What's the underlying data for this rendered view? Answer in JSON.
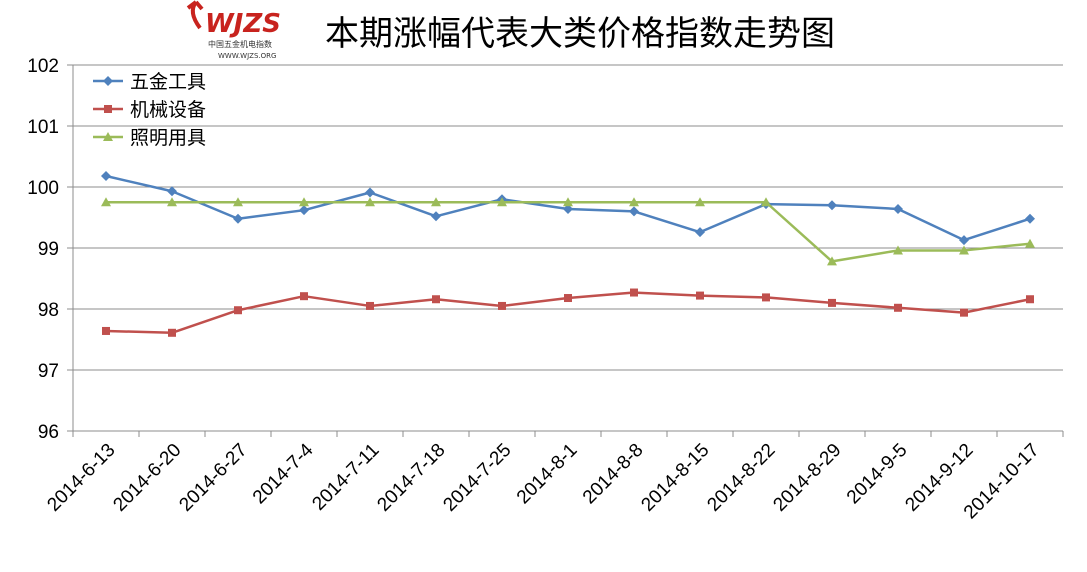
{
  "logo": {
    "brand": "WJZS",
    "subtitle": "中国五金机电指数",
    "url": "WWW.WJZS.ORG",
    "color": "#c8231e"
  },
  "chart_data": {
    "type": "line",
    "title": "本期涨幅代表大类价格指数走势图",
    "xlabel": "",
    "ylabel": "",
    "ylim": [
      96,
      102
    ],
    "yticks": [
      96,
      97,
      98,
      99,
      100,
      101,
      102
    ],
    "grid": true,
    "legend_position": "top-left",
    "categories": [
      "2014-6-13",
      "2014-6-20",
      "2014-6-27",
      "2014-7-4",
      "2014-7-11",
      "2014-7-18",
      "2014-7-25",
      "2014-8-1",
      "2014-8-8",
      "2014-8-15",
      "2014-8-22",
      "2014-8-29",
      "2014-9-5",
      "2014-9-12",
      "2014-10-17"
    ],
    "series": [
      {
        "name": "五金工具",
        "color": "#4f81bd",
        "marker": "diamond",
        "values": [
          100.18,
          99.93,
          99.48,
          99.62,
          99.91,
          99.52,
          99.8,
          99.64,
          99.6,
          99.26,
          99.72,
          99.7,
          99.64,
          99.13,
          99.48
        ]
      },
      {
        "name": "机械设备",
        "color": "#c0504d",
        "marker": "square",
        "values": [
          97.64,
          97.61,
          97.98,
          98.21,
          98.05,
          98.16,
          98.05,
          98.18,
          98.27,
          98.22,
          98.19,
          98.1,
          98.02,
          97.94,
          98.16
        ]
      },
      {
        "name": "照明用具",
        "color": "#9bbb59",
        "marker": "triangle",
        "values": [
          99.75,
          99.75,
          99.75,
          99.75,
          99.75,
          99.75,
          99.75,
          99.75,
          99.75,
          99.75,
          99.75,
          98.78,
          98.96,
          98.96,
          99.07
        ]
      }
    ]
  }
}
